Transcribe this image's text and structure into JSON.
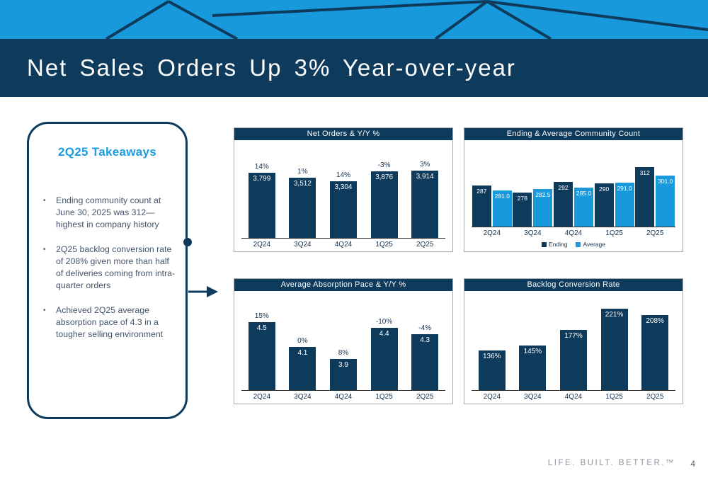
{
  "slide": {
    "title": "Net Sales Orders Up 3% Year-over-year",
    "tagline": "LIFE. BUILT. BETTER.™",
    "page_number": "4"
  },
  "takeaways": {
    "title": "2Q25 Takeaways",
    "bullets": [
      "Ending community count at June 30, 2025 was 312—highest in company history",
      "2Q25 backlog conversion rate of 208% given more than half of deliveries coming from intra-quarter orders",
      "Achieved 2Q25 average absorption pace of 4.3 in a tougher selling environment"
    ]
  },
  "colors": {
    "navy": "#0E3A5C",
    "blue": "#1899DC",
    "body_text": "#44546A",
    "footer_gray": "#8D939B"
  },
  "chart_data": [
    {
      "type": "bar",
      "title": "Net Orders & Y/Y %",
      "categories": [
        "2Q24",
        "3Q24",
        "4Q24",
        "1Q25",
        "2Q25"
      ],
      "values": [
        3799,
        3512,
        3304,
        3876,
        3914
      ],
      "value_labels": [
        "3,799",
        "3,512",
        "3,304",
        "3,876",
        "3,914"
      ],
      "pct_labels": [
        "14%",
        "1%",
        "14%",
        "-3%",
        "3%"
      ],
      "ylim": [
        0,
        4200
      ],
      "grid": false,
      "legend": null
    },
    {
      "type": "bar",
      "title": "Ending & Average Community Count",
      "categories": [
        "2Q24",
        "3Q24",
        "4Q24",
        "1Q25",
        "2Q25"
      ],
      "series": [
        {
          "name": "Ending",
          "color": "navy",
          "values": [
            287,
            278,
            292,
            290,
            312
          ],
          "labels": [
            "287",
            "278",
            "292",
            "290",
            "312"
          ]
        },
        {
          "name": "Average",
          "color": "blue",
          "values": [
            281.0,
            282.5,
            285.0,
            291.0,
            301.0
          ],
          "labels": [
            "281.0",
            "282.5",
            "285.0",
            "291.0",
            "301.0"
          ]
        }
      ],
      "ylim": [
        232,
        318
      ],
      "grid": false,
      "legend": [
        "Ending",
        "Average"
      ],
      "legend_position": "bottom"
    },
    {
      "type": "bar",
      "title": "Average Absorption Pace & Y/Y %",
      "categories": [
        "2Q24",
        "3Q24",
        "4Q24",
        "1Q25",
        "2Q25"
      ],
      "values": [
        4.5,
        4.1,
        3.9,
        4.4,
        4.3
      ],
      "value_labels": [
        "4.5",
        "4.1",
        "3.9",
        "4.4",
        "4.3"
      ],
      "pct_labels": [
        "15%",
        "0%",
        "8%",
        "-10%",
        "-4%"
      ],
      "ylim": [
        3.4,
        4.6
      ],
      "grid": false,
      "legend": null
    },
    {
      "type": "bar",
      "title": "Backlog Conversion Rate",
      "categories": [
        "2Q24",
        "3Q24",
        "4Q24",
        "1Q25",
        "2Q25"
      ],
      "values": [
        136,
        145,
        177,
        221,
        208
      ],
      "value_labels": [
        "136%",
        "145%",
        "177%",
        "221%",
        "208%"
      ],
      "ylim": [
        55,
        235
      ],
      "grid": false,
      "legend": null
    }
  ]
}
